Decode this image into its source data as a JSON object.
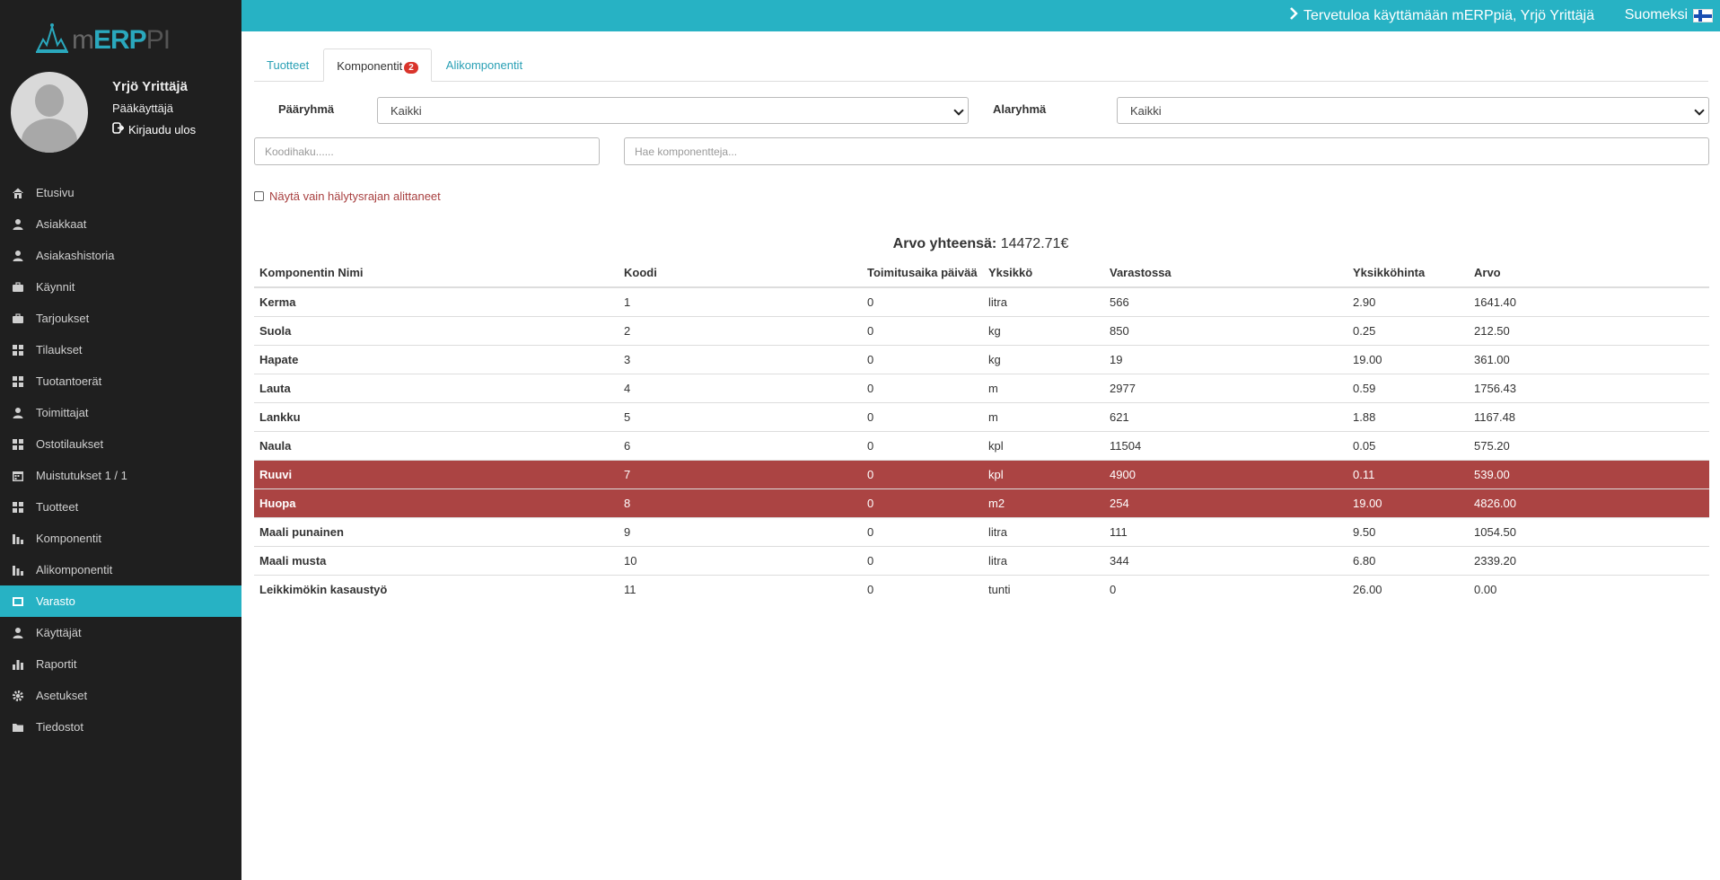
{
  "app": {
    "logo_text_m": "m",
    "logo_text_erp": "ERP",
    "logo_text_pi": "PI"
  },
  "user": {
    "name": "Yrjö Yrittäjä",
    "role": "Pääkäyttäjä",
    "logout": "Kirjaudu ulos"
  },
  "topbar": {
    "welcome": "Tervetuloa käyttämään mERPpiä, Yrjö Yrittäjä",
    "language": "Suomeksi"
  },
  "sidebar": {
    "items": [
      {
        "label": "Etusivu",
        "icon": "home-icon"
      },
      {
        "label": "Asiakkaat",
        "icon": "user-icon"
      },
      {
        "label": "Asiakashistoria",
        "icon": "user-icon"
      },
      {
        "label": "Käynnit",
        "icon": "briefcase-icon"
      },
      {
        "label": "Tarjoukset",
        "icon": "briefcase-icon"
      },
      {
        "label": "Tilaukset",
        "icon": "grid-icon"
      },
      {
        "label": "Tuotantoerät",
        "icon": "grid-icon"
      },
      {
        "label": "Toimittajat",
        "icon": "user-icon"
      },
      {
        "label": "Ostotilaukset",
        "icon": "grid-icon"
      },
      {
        "label": "Muistutukset 1 / 1",
        "icon": "calendar-icon"
      },
      {
        "label": "Tuotteet",
        "icon": "grid-icon"
      },
      {
        "label": "Komponentit",
        "icon": "tree-icon"
      },
      {
        "label": "Alikomponentit",
        "icon": "tree-icon"
      },
      {
        "label": "Varasto",
        "icon": "box-icon",
        "active": true
      },
      {
        "label": "Käyttäjät",
        "icon": "user-icon"
      },
      {
        "label": "Raportit",
        "icon": "bar-chart-icon"
      },
      {
        "label": "Asetukset",
        "icon": "gear-icon"
      },
      {
        "label": "Tiedostot",
        "icon": "folder-icon"
      }
    ]
  },
  "tabs": [
    {
      "label": "Tuotteet"
    },
    {
      "label": "Komponentit",
      "badge": "2",
      "active": true
    },
    {
      "label": "Alikomponentit"
    }
  ],
  "filters": {
    "main_group_label": "Pääryhmä",
    "main_group_value": "Kaikki",
    "sub_group_label": "Alaryhmä",
    "sub_group_value": "Kaikki",
    "code_search_placeholder": "Koodihaku......",
    "component_search_placeholder": "Hae komponentteja...",
    "alert_only_label": "Näytä vain hälytysrajan alittaneet"
  },
  "summary": {
    "label": "Arvo yhteensä:",
    "value": "14472.71€"
  },
  "table": {
    "headers": [
      "Komponentin Nimi",
      "Koodi",
      "Toimitusaika päivää",
      "Yksikkö",
      "Varastossa",
      "Yksikköhinta",
      "Arvo"
    ],
    "rows": [
      {
        "name": "Kerma",
        "code": "1",
        "lead": "0",
        "unit": "litra",
        "stock": "566",
        "price": "2.90",
        "value": "1641.40",
        "alert": false
      },
      {
        "name": "Suola",
        "code": "2",
        "lead": "0",
        "unit": "kg",
        "stock": "850",
        "price": "0.25",
        "value": "212.50",
        "alert": false
      },
      {
        "name": "Hapate",
        "code": "3",
        "lead": "0",
        "unit": "kg",
        "stock": "19",
        "price": "19.00",
        "value": "361.00",
        "alert": false
      },
      {
        "name": "Lauta",
        "code": "4",
        "lead": "0",
        "unit": "m",
        "stock": "2977",
        "price": "0.59",
        "value": "1756.43",
        "alert": false
      },
      {
        "name": "Lankku",
        "code": "5",
        "lead": "0",
        "unit": "m",
        "stock": "621",
        "price": "1.88",
        "value": "1167.48",
        "alert": false
      },
      {
        "name": "Naula",
        "code": "6",
        "lead": "0",
        "unit": "kpl",
        "stock": "11504",
        "price": "0.05",
        "value": "575.20",
        "alert": false
      },
      {
        "name": "Ruuvi",
        "code": "7",
        "lead": "0",
        "unit": "kpl",
        "stock": "4900",
        "price": "0.11",
        "value": "539.00",
        "alert": true
      },
      {
        "name": "Huopa",
        "code": "8",
        "lead": "0",
        "unit": "m2",
        "stock": "254",
        "price": "19.00",
        "value": "4826.00",
        "alert": true
      },
      {
        "name": "Maali punainen",
        "code": "9",
        "lead": "0",
        "unit": "litra",
        "stock": "111",
        "price": "9.50",
        "value": "1054.50",
        "alert": false
      },
      {
        "name": "Maali musta",
        "code": "10",
        "lead": "0",
        "unit": "litra",
        "stock": "344",
        "price": "6.80",
        "value": "2339.20",
        "alert": false
      },
      {
        "name": "Leikkimökin kasaustyö",
        "code": "11",
        "lead": "0",
        "unit": "tunti",
        "stock": "0",
        "price": "26.00",
        "value": "0.00",
        "alert": false
      }
    ]
  },
  "colors": {
    "accent": "#27b2c4",
    "sidebar_bg": "#1f1f1f",
    "alert_row": "#ab4443"
  }
}
